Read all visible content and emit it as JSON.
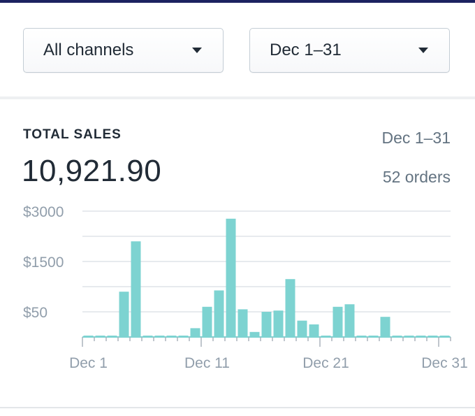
{
  "filters": {
    "channel": {
      "selected": "All channels"
    },
    "date": {
      "selected": "Dec 1–31"
    }
  },
  "metric": {
    "title": "TOTAL SALES",
    "value": "10,921.90",
    "range": "Dec 1–31",
    "orders": "52 orders"
  },
  "colors": {
    "bar": "#7dd3d1",
    "grid": "#dfe3e8",
    "axis_text": "#919eab",
    "axis_line": "#7dd3d1"
  },
  "chart_data": {
    "type": "bar",
    "y_tick_labels": [
      "$3000",
      "$1500",
      "$50"
    ],
    "x_tick_labels": [
      "Dec 1",
      "Dec 11",
      "Dec 21",
      "Dec 31"
    ],
    "categories": [
      "Dec 1",
      "Dec 2",
      "Dec 3",
      "Dec 4",
      "Dec 5",
      "Dec 6",
      "Dec 7",
      "Dec 8",
      "Dec 9",
      "Dec 10",
      "Dec 11",
      "Dec 12",
      "Dec 13",
      "Dec 14",
      "Dec 15",
      "Dec 16",
      "Dec 17",
      "Dec 18",
      "Dec 19",
      "Dec 20",
      "Dec 21",
      "Dec 22",
      "Dec 23",
      "Dec 24",
      "Dec 25",
      "Dec 26",
      "Dec 27",
      "Dec 28",
      "Dec 29",
      "Dec 30",
      "Dec 31"
    ],
    "values": [
      0.03,
      0.03,
      0.03,
      1.8,
      3.8,
      0.03,
      0.03,
      0.03,
      0.03,
      0.35,
      1.2,
      1.85,
      4.7,
      1.1,
      0.2,
      1.0,
      1.05,
      2.3,
      0.65,
      0.5,
      0.03,
      1.2,
      1.3,
      0.03,
      0.03,
      0.8,
      0.03,
      0.03,
      0.03,
      0.03,
      0.03
    ],
    "values_note_scale": "grid steps",
    "grid": true
  }
}
